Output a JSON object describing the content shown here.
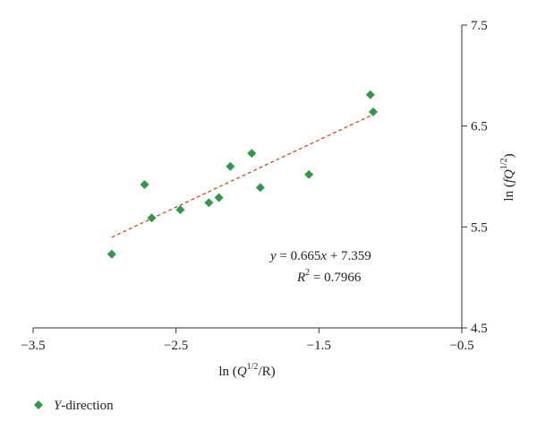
{
  "chart_data": {
    "type": "scatter",
    "xlim": [
      -3.5,
      -0.5
    ],
    "ylim": [
      4.5,
      7.5
    ],
    "x_ticks": [
      "−3.5",
      "−2.5",
      "−1.5",
      "−0.5"
    ],
    "y_ticks": [
      "4.5",
      "5.5",
      "6.5",
      "7.5"
    ],
    "x_tick_values": [
      -3.5,
      -2.5,
      -1.5,
      -0.5
    ],
    "y_tick_values": [
      4.5,
      5.5,
      6.5,
      7.5
    ],
    "xlabel": {
      "prefix": "ln (",
      "base": "Q",
      "sup": "1/2",
      "suffix": "/R)"
    },
    "ylabel": {
      "prefix": "ln (",
      "base": "fQ",
      "sup": "1/2",
      "suffix": ")"
    },
    "legend": {
      "position": "bottom-left",
      "italic": "Y",
      "label": "-direction"
    },
    "colors": {
      "marker": "#2e9a48",
      "trendline": "#c8501e"
    },
    "series": [
      {
        "name": "Y-direction",
        "x": [
          -2.95,
          -2.72,
          -2.67,
          -2.47,
          -2.27,
          -2.2,
          -2.12,
          -1.97,
          -1.91,
          -1.57,
          -1.14,
          -1.12
        ],
        "y": [
          5.23,
          5.92,
          5.59,
          5.67,
          5.74,
          5.79,
          6.1,
          6.23,
          5.89,
          6.02,
          6.81,
          6.64
        ]
      }
    ],
    "trendline": {
      "slope": 0.665,
      "intercept": 7.359,
      "x_range": [
        -2.95,
        -1.12
      ],
      "equation": {
        "y_var": "y",
        "eq_text": " = 0.665",
        "x_var": "x",
        "rest": " + 7.359",
        "r_var": "R",
        "r_sup": "2",
        "r_value": " = 0.7966"
      }
    }
  }
}
